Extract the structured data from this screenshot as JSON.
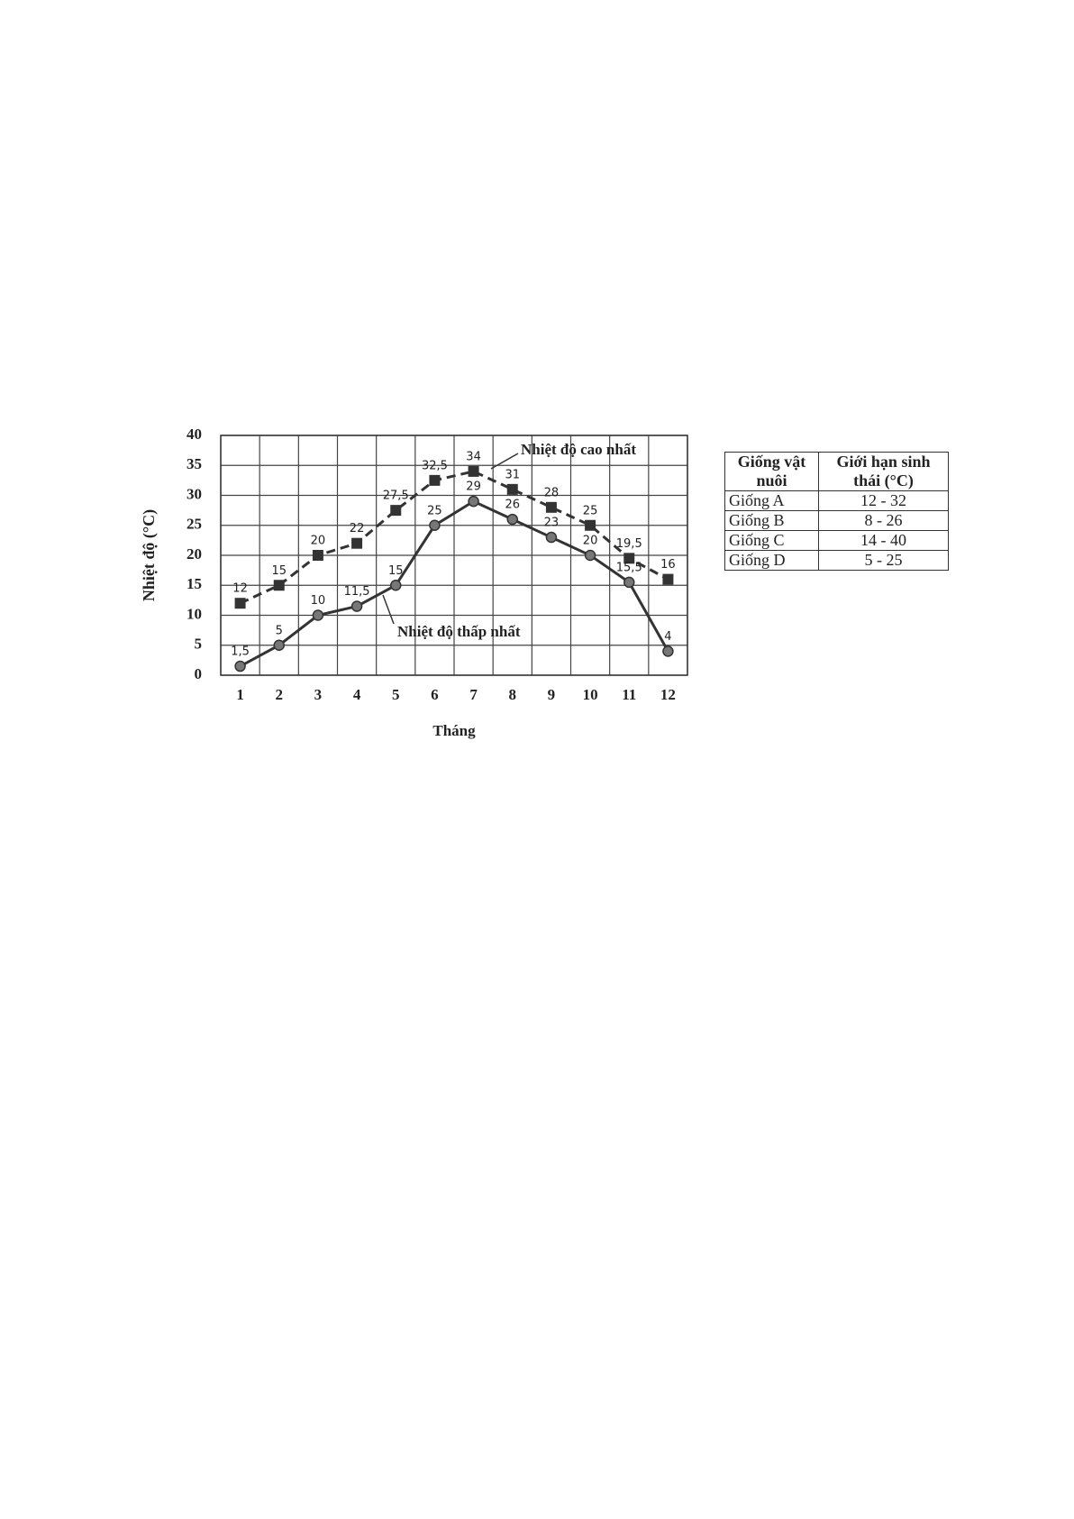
{
  "chart_data": {
    "type": "line",
    "x_label": "Tháng",
    "y_label": "Nhiệt độ (°C)",
    "categories": [
      "1",
      "2",
      "3",
      "4",
      "5",
      "6",
      "7",
      "8",
      "9",
      "10",
      "11",
      "12"
    ],
    "series": [
      {
        "name": "Nhiệt độ cao nhất",
        "color": "#333333",
        "line_style": "dashed",
        "marker": "square",
        "values": [
          12,
          15,
          20,
          22,
          27.5,
          32.5,
          34,
          31,
          28,
          25,
          19.5,
          16
        ],
        "value_labels": [
          "12",
          "15",
          "20",
          "22",
          "27,5",
          "32,5",
          "34",
          "31",
          "28",
          "25",
          "19,5",
          "16"
        ]
      },
      {
        "name": "Nhiệt độ thấp nhất",
        "color": "#333333",
        "line_style": "solid",
        "marker": "circle",
        "values": [
          1.5,
          5,
          10,
          11.5,
          15,
          25,
          29,
          26,
          23,
          20,
          15.5,
          4
        ],
        "value_labels": [
          "1,5",
          "5",
          "10",
          "11,5",
          "15",
          "25",
          "29",
          "26",
          "23",
          "20",
          "15,5",
          "4"
        ]
      }
    ],
    "ylim": [
      0,
      40
    ],
    "yticks": [
      0,
      5,
      10,
      15,
      20,
      25,
      30,
      35,
      40
    ],
    "grid": true
  },
  "table": {
    "header": [
      "Giống vật nuôi",
      "Giới hạn sinh thái (°C)"
    ],
    "rows": [
      [
        "Giống A",
        "12 - 32"
      ],
      [
        "Giống B",
        "8 - 26"
      ],
      [
        "Giống C",
        "14 - 40"
      ],
      [
        "Giống D",
        "5 - 25"
      ]
    ]
  }
}
